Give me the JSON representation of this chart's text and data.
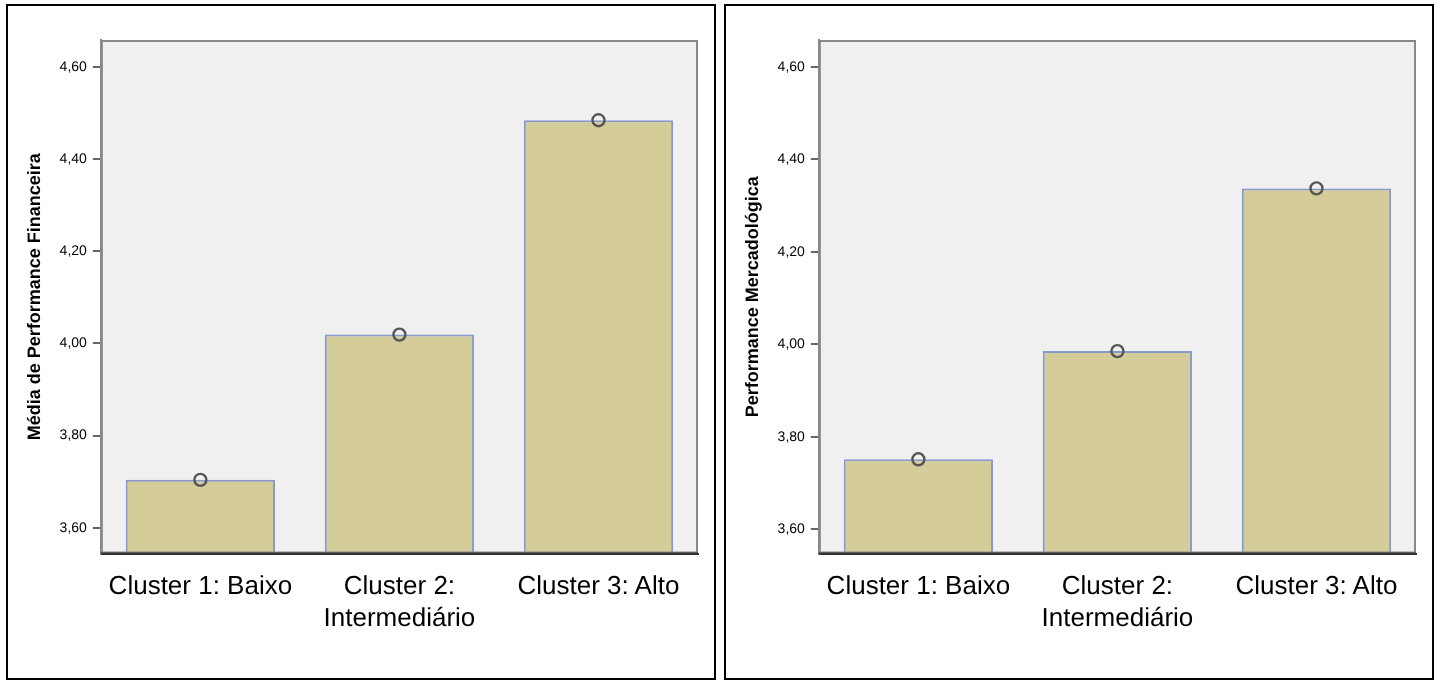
{
  "chart_data": [
    {
      "type": "bar",
      "ylabel": "Média de Performance Financeira",
      "categories": [
        "Cluster 1: Baixo",
        "Cluster 2:\nIntermediário",
        "Cluster 3: Alto"
      ],
      "ylim": [
        3.544,
        4.658
      ],
      "yticks": [
        {
          "value": 3.6,
          "label": "3,60"
        },
        {
          "value": 3.8,
          "label": "3,80"
        },
        {
          "value": 4.0,
          "label": "4,00"
        },
        {
          "value": 4.2,
          "label": "4,20"
        },
        {
          "value": 4.4,
          "label": "4,40"
        },
        {
          "value": 4.6,
          "label": "4,60"
        }
      ],
      "grid": false,
      "legend": false,
      "series": [
        {
          "color": "#d4cd9a",
          "values": [
            3.704,
            4.019,
            4.484
          ]
        },
        {
          "type": "scatter",
          "color": "#555555",
          "marker": "circle",
          "x": [
            "Cluster 1: Baixo",
            "Cluster 2:\nIntermediário",
            "Cluster 3: Alto"
          ],
          "values": [
            3.704,
            4.019,
            4.484
          ]
        }
      ]
    },
    {
      "type": "bar",
      "ylabel": "Performance Mercadológica",
      "categories": [
        "Cluster 1: Baixo",
        "Cluster 2:\nIntermediário",
        "Cluster 3: Alto"
      ],
      "ylim": [
        3.547,
        4.658
      ],
      "yticks": [
        {
          "value": 3.6,
          "label": "3,60"
        },
        {
          "value": 3.8,
          "label": "3,80"
        },
        {
          "value": 4.0,
          "label": "4,00"
        },
        {
          "value": 4.2,
          "label": "4,20"
        },
        {
          "value": 4.4,
          "label": "4,40"
        },
        {
          "value": 4.6,
          "label": "4,60"
        }
      ],
      "grid": false,
      "legend": false,
      "series": [
        {
          "color": "#d4cd9a",
          "values": [
            3.751,
            3.985,
            4.337
          ]
        },
        {
          "type": "scatter",
          "color": "#555555",
          "marker": "circle",
          "x": [
            "Cluster 1: Baixo",
            "Cluster 2:\nIntermediário",
            "Cluster 3: Alto"
          ],
          "values": [
            3.751,
            3.985,
            4.337
          ]
        }
      ]
    }
  ]
}
